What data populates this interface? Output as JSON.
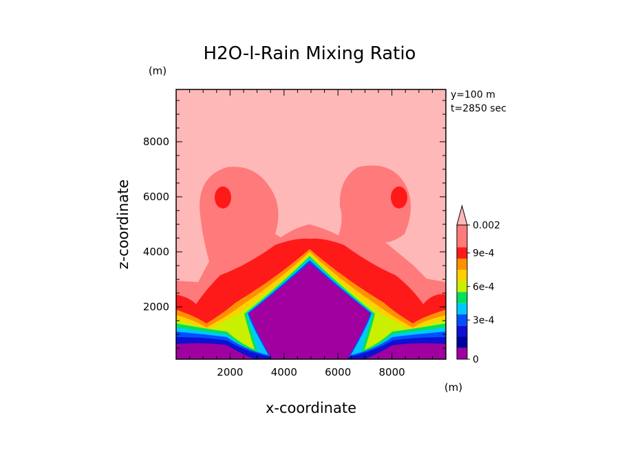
{
  "chart_data": {
    "type": "heatmap",
    "title": "H2O-l-Rain Mixing Ratio",
    "xlabel": "x-coordinate",
    "ylabel": "z-coordinate",
    "x_unit": "(m)",
    "y_unit": "(m)",
    "annotations": [
      "y=100 m",
      "t=2850 sec"
    ],
    "xlim": [
      0,
      10000
    ],
    "ylim": [
      100,
      9900
    ],
    "xticks": [
      2000,
      4000,
      6000,
      8000
    ],
    "yticks": [
      2000,
      4000,
      6000,
      8000
    ],
    "xtick_labels": [
      "2000",
      "4000",
      "6000",
      "8000"
    ],
    "ytick_labels": [
      "2000",
      "4000",
      "6000",
      "8000"
    ],
    "grid": false,
    "colorbar": {
      "position": "right",
      "extend": "max",
      "labels": [
        "0",
        "3e-4",
        "6e-4",
        "9e-4",
        "0.002"
      ],
      "label_levels": [
        0,
        3,
        6,
        9,
        12
      ],
      "colors": [
        "#a000a0",
        "#1010d0",
        "#0050ff",
        "#00c8ff",
        "#00e060",
        "#c8f000",
        "#ffd000",
        "#ff9000",
        "#ff1a1a",
        "#ff7a7a",
        "#ffb8b8"
      ]
    },
    "regions": [
      {
        "level": "background",
        "color": "#ffb8b8"
      },
      {
        "level": "0.002+",
        "color": "#ff7a7a"
      },
      {
        "level": "1e-3 to 2e-3",
        "color": "#ff1a1a"
      },
      {
        "level": "9e-4",
        "color": "#ff9000"
      },
      {
        "level": "8e-4",
        "color": "#ffd000"
      },
      {
        "level": "7e-4",
        "color": "#c8f000"
      },
      {
        "level": "6e-4",
        "color": "#00e060"
      },
      {
        "level": "5e-4",
        "color": "#00c8ff"
      },
      {
        "level": "4e-4",
        "color": "#0050ff"
      },
      {
        "level": "3e-4",
        "color": "#1010d0"
      },
      {
        "level": "0",
        "color": "#a000a0"
      }
    ]
  }
}
